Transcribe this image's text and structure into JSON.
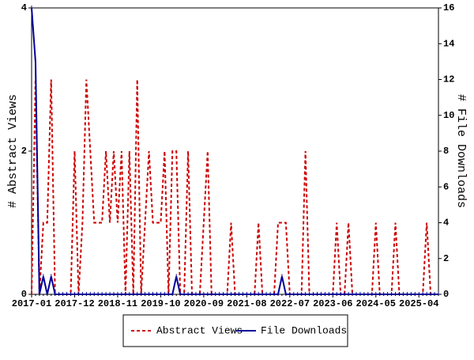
{
  "chart_data": {
    "type": "line",
    "y_label": "# Abstract Views",
    "y2_label": "# File Downloads",
    "categories": [
      "2017-01",
      null,
      null,
      null,
      null,
      null,
      null,
      null,
      null,
      null,
      null,
      "2017-12",
      null,
      null,
      null,
      null,
      null,
      null,
      null,
      null,
      null,
      null,
      "2018-11",
      null,
      null,
      null,
      null,
      null,
      null,
      null,
      null,
      null,
      null,
      "2019-10",
      null,
      null,
      null,
      null,
      null,
      null,
      null,
      null,
      null,
      null,
      "2020-09",
      null,
      null,
      null,
      null,
      null,
      null,
      null,
      null,
      null,
      null,
      "2021-08",
      null,
      null,
      null,
      null,
      null,
      null,
      null,
      null,
      null,
      null,
      "2022-07",
      null,
      null,
      null,
      null,
      null,
      null,
      null,
      null,
      null,
      null,
      "2023-06",
      null,
      null,
      null,
      null,
      null,
      null,
      null,
      null,
      null,
      null,
      "2024-05",
      null,
      null,
      null,
      null,
      null,
      null,
      null,
      null,
      null,
      null,
      "2025-04",
      null,
      null,
      null,
      null,
      null
    ],
    "series": [
      {
        "name": "Abstract Views",
        "color": "#cc0000",
        "style": "dashed",
        "values": [
          0,
          3,
          0,
          1,
          1,
          3,
          0,
          0,
          0,
          0,
          0,
          2,
          0,
          1,
          3,
          2,
          1,
          1,
          1,
          2,
          1,
          2,
          1,
          2,
          0,
          2,
          0,
          3,
          0,
          1,
          2,
          1,
          1,
          1,
          2,
          0,
          2,
          2,
          0,
          0,
          2,
          0,
          0,
          0,
          1,
          2,
          0,
          0,
          0,
          0,
          0,
          1,
          0,
          0,
          0,
          0,
          0,
          0,
          1,
          0,
          0,
          0,
          0,
          1,
          1,
          1,
          0,
          0,
          0,
          0,
          2,
          0,
          0,
          0,
          0,
          0,
          0,
          0,
          1,
          0,
          0,
          1,
          0,
          0,
          0,
          0,
          0,
          0,
          1,
          0,
          0,
          0,
          0,
          1,
          0,
          0,
          0,
          0,
          0,
          0,
          0,
          1,
          0,
          0,
          0
        ]
      },
      {
        "name": "File Downloads",
        "color": "#000099",
        "style": "solid",
        "axis": "y2",
        "values": [
          16,
          13,
          0,
          1,
          0,
          1,
          0,
          0,
          0,
          0,
          0,
          0,
          0,
          0,
          0,
          0,
          0,
          0,
          0,
          0,
          0,
          0,
          0,
          0,
          0,
          0,
          0,
          0,
          0,
          0,
          0,
          0,
          0,
          0,
          0,
          0,
          0,
          1,
          0,
          0,
          0,
          0,
          0,
          0,
          0,
          0,
          0,
          0,
          0,
          0,
          0,
          0,
          0,
          0,
          0,
          0,
          0,
          0,
          0,
          0,
          0,
          0,
          0,
          0,
          1,
          0,
          0,
          0,
          0,
          0,
          0,
          0,
          0,
          0,
          0,
          0,
          0,
          0,
          0,
          0,
          0,
          0,
          0,
          0,
          0,
          0,
          0,
          0,
          0,
          0,
          0,
          0,
          0,
          0,
          0,
          0,
          0,
          0,
          0,
          0,
          0,
          0,
          0,
          0,
          0
        ]
      }
    ],
    "ylim": [
      0,
      4
    ],
    "yticks": [
      0,
      2,
      4
    ],
    "y2lim": [
      0,
      16
    ],
    "y2ticks": [
      0,
      2,
      4,
      6,
      8,
      10,
      12,
      14,
      16
    ],
    "legend": "bottom"
  }
}
